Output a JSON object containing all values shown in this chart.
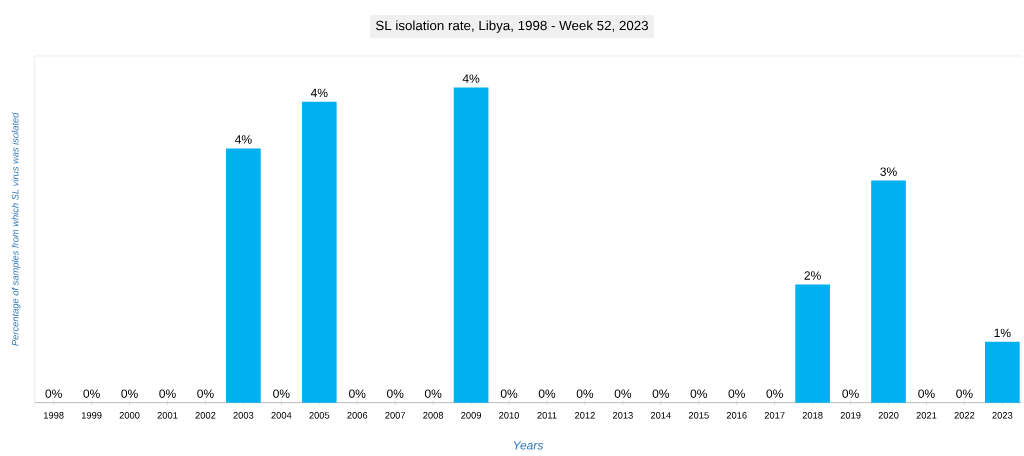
{
  "chart_data": {
    "type": "bar",
    "title": "SL isolation rate, Libya, 1998 - Week 52, 2023",
    "xlabel": "Years",
    "ylabel": "Percentage of  samples from which SL virus was isolated",
    "categories": [
      "1998",
      "1999",
      "2000",
      "2001",
      "2002",
      "2003",
      "2004",
      "2005",
      "2006",
      "2007",
      "2008",
      "2009",
      "2010",
      "2011",
      "2012",
      "2013",
      "2014",
      "2015",
      "2016",
      "2017",
      "2018",
      "2019",
      "2020",
      "2021",
      "2022",
      "2023"
    ],
    "values": [
      0,
      0,
      0,
      0,
      0,
      3.55,
      0,
      4.2,
      0,
      0,
      0,
      4.4,
      0,
      0,
      0,
      0,
      0,
      0,
      0,
      0,
      1.65,
      0,
      3.1,
      0,
      0,
      0.85
    ],
    "value_labels": [
      "0%",
      "0%",
      "0%",
      "0%",
      "0%",
      "4%",
      "0%",
      "4%",
      "0%",
      "0%",
      "0%",
      "4%",
      "0%",
      "0%",
      "0%",
      "0%",
      "0%",
      "0%",
      "0%",
      "0%",
      "2%",
      "0%",
      "3%",
      "0%",
      "0%",
      "1%"
    ],
    "color": "#00b0f0",
    "tick_labels": "x"
  }
}
